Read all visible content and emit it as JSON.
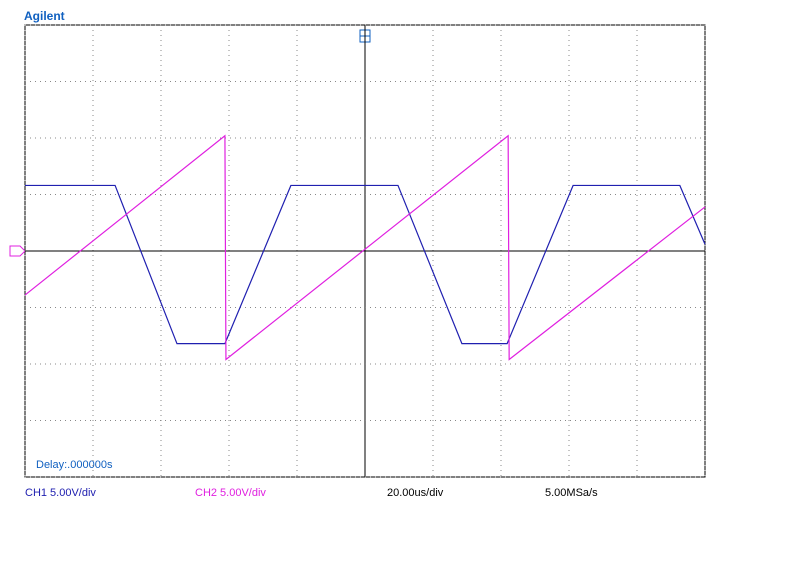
{
  "chart_data": {
    "type": "line",
    "title": "Agilent",
    "annotation": "Delay:.000000s",
    "x_label": "20.00us/div",
    "sample_rate": "5.00MSa/s",
    "series": [
      {
        "name": "CH1 5.00V/div",
        "color": "#2020b0",
        "x": [
          0,
          26.5,
          44.7,
          58.8,
          78.2,
          109.7,
          128.5,
          141.8,
          161.2,
          192.6,
          200
        ],
        "values": [
          5.8,
          5.8,
          -8.2,
          -8.2,
          5.8,
          5.8,
          -8.2,
          -8.2,
          5.8,
          5.8,
          0.6
        ]
      },
      {
        "name": "CH2 5.00V/div",
        "color": "#e020e0",
        "x": [
          0,
          58.8,
          59.1,
          142.1,
          142.4,
          200
        ],
        "values": [
          -3.9,
          10.2,
          -9.6,
          10.2,
          -9.6,
          3.9
        ]
      }
    ],
    "xlim": [
      0,
      200
    ],
    "ylim": [
      -20,
      20
    ],
    "xticks": [
      0,
      20,
      40,
      60,
      80,
      100,
      120,
      140,
      160,
      180,
      200
    ],
    "yticks": [
      -20,
      -15,
      -10,
      -5,
      0,
      5,
      10,
      15,
      20
    ],
    "grid": true
  }
}
